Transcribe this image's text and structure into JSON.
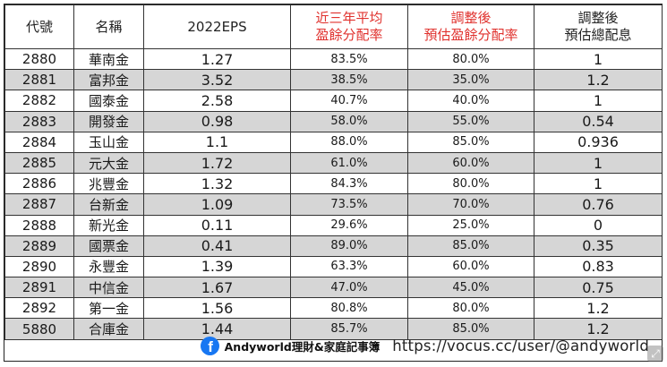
{
  "table": {
    "headers": [
      {
        "line1": "代號",
        "line2": "",
        "style": "dark"
      },
      {
        "line1": "名稱",
        "line2": "",
        "style": "dark"
      },
      {
        "line1": "2022EPS",
        "line2": "",
        "style": "dark"
      },
      {
        "line1": "近三年平均",
        "line2": "盈餘分配率",
        "style": "red"
      },
      {
        "line1": "調整後",
        "line2": "預估盈餘分配率",
        "style": "red"
      },
      {
        "line1": "調整後",
        "line2": "預估總配息",
        "style": "dark"
      }
    ],
    "rows": [
      [
        "2880",
        "華南金",
        "1.27",
        "83.5%",
        "80.0%",
        "1"
      ],
      [
        "2881",
        "富邦金",
        "3.52",
        "38.5%",
        "35.0%",
        "1.2"
      ],
      [
        "2882",
        "國泰金",
        "2.58",
        "40.7%",
        "40.0%",
        "1"
      ],
      [
        "2883",
        "開發金",
        "0.98",
        "58.0%",
        "55.0%",
        "0.54"
      ],
      [
        "2884",
        "玉山金",
        "1.1",
        "88.0%",
        "85.0%",
        "0.936"
      ],
      [
        "2885",
        "元大金",
        "1.72",
        "61.0%",
        "60.0%",
        "1"
      ],
      [
        "2886",
        "兆豐金",
        "1.32",
        "84.3%",
        "80.0%",
        "1"
      ],
      [
        "2887",
        "台新金",
        "1.09",
        "73.5%",
        "70.0%",
        "0.76"
      ],
      [
        "2888",
        "新光金",
        "0.11",
        "29.6%",
        "25.0%",
        "0"
      ],
      [
        "2889",
        "國票金",
        "0.41",
        "89.0%",
        "85.0%",
        "0.35"
      ],
      [
        "2890",
        "永豐金",
        "1.39",
        "63.3%",
        "60.0%",
        "0.83"
      ],
      [
        "2891",
        "中信金",
        "1.67",
        "47.0%",
        "45.0%",
        "0.75"
      ],
      [
        "2892",
        "第一金",
        "1.56",
        "80.8%",
        "80.0%",
        "1.2"
      ],
      [
        "5880",
        "合庫金",
        "1.44",
        "85.7%",
        "85.0%",
        "1.2"
      ]
    ]
  },
  "footer": {
    "icon": "facebook-icon",
    "brand": "Andyworld理財&家庭記事簿",
    "url": "https://vocus.cc/user/@andyworld"
  },
  "overlay": {
    "icon": "expand-icon",
    "glyph": "⤢"
  },
  "colors": {
    "header_red": "#e0322e",
    "stripe_gray": "#d6d6d6",
    "facebook_blue": "#1877f2"
  }
}
